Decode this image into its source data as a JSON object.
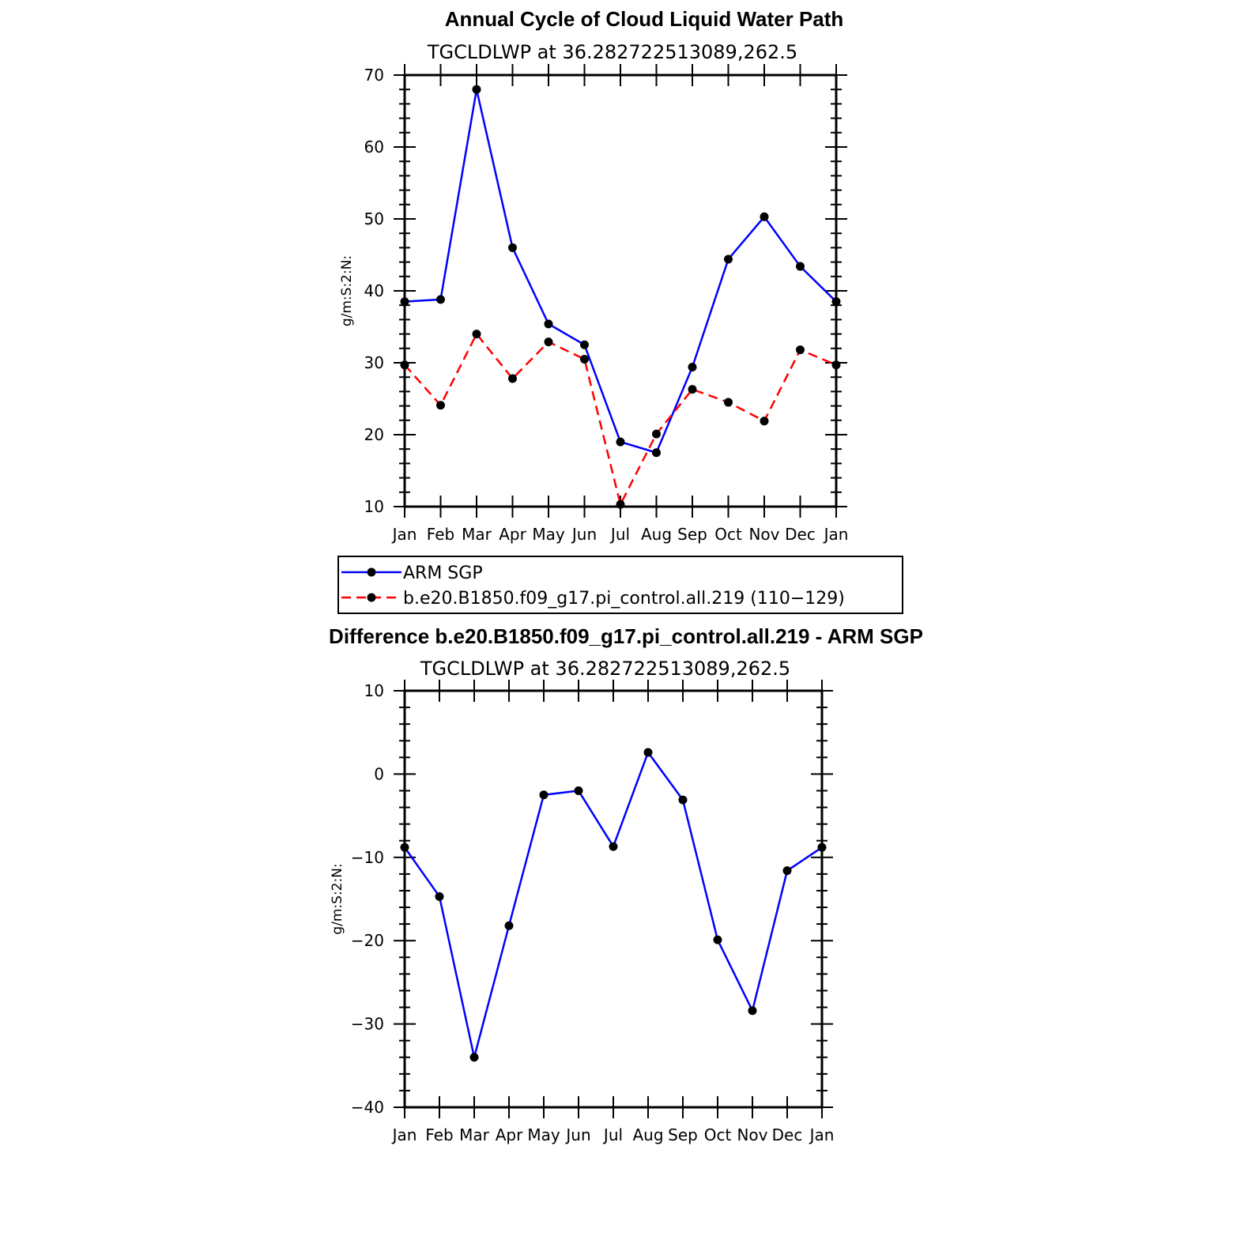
{
  "chart_data": [
    {
      "type": "line",
      "title": "Annual Cycle of Cloud Liquid Water Path",
      "subtitle": "TGCLDLWP at 36.282722513089,262.5",
      "ylabel": "g/m:S:2:N:",
      "ylim": [
        10,
        70
      ],
      "yticks": [
        10,
        20,
        30,
        40,
        50,
        60,
        70
      ],
      "categories": [
        "Jan",
        "Feb",
        "Mar",
        "Apr",
        "May",
        "Jun",
        "Jul",
        "Aug",
        "Sep",
        "Oct",
        "Nov",
        "Dec",
        "Jan"
      ],
      "series": [
        {
          "name": "ARM SGP",
          "color": "#0000ff",
          "dash": "solid",
          "values": [
            38.5,
            38.8,
            68.0,
            46.0,
            35.4,
            32.5,
            19.0,
            17.5,
            29.4,
            44.4,
            50.3,
            43.4,
            38.5
          ]
        },
        {
          "name": "b.e20.B1850.f09_g17.pi_control.all.219 (110−129)",
          "color": "#ff0000",
          "dash": "dashed",
          "values": [
            29.7,
            24.1,
            34.0,
            27.8,
            32.9,
            30.5,
            10.3,
            20.1,
            26.3,
            24.5,
            21.9,
            31.8,
            29.7
          ]
        }
      ],
      "legend": "below"
    },
    {
      "type": "line",
      "title": "Difference b.e20.B1850.f09_g17.pi_control.all.219 - ARM SGP",
      "subtitle": "TGCLDLWP at 36.282722513089,262.5",
      "ylabel": "g/m:S:2:N:",
      "ylim": [
        -40,
        10
      ],
      "yticks": [
        -40,
        -30,
        -20,
        -10,
        0,
        10
      ],
      "ytick_labels": [
        "−40",
        "−30",
        "−20",
        "−10",
        "0",
        "10"
      ],
      "categories": [
        "Jan",
        "Feb",
        "Mar",
        "Apr",
        "May",
        "Jun",
        "Jul",
        "Aug",
        "Sep",
        "Oct",
        "Nov",
        "Dec",
        "Jan"
      ],
      "series": [
        {
          "color": "#0000ff",
          "dash": "solid",
          "values": [
            -8.8,
            -14.7,
            -34.0,
            -18.2,
            -2.5,
            -2.0,
            -8.7,
            2.6,
            -3.1,
            -19.9,
            -28.4,
            -11.6,
            -8.8
          ]
        }
      ]
    }
  ]
}
